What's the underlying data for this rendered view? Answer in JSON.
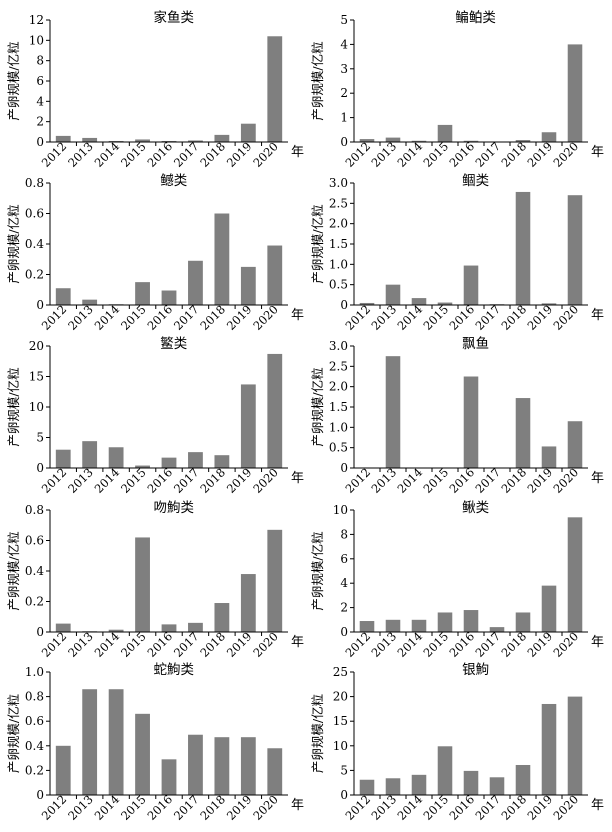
{
  "colors": {
    "bar": "#7f7f7f",
    "axis": "#000000"
  },
  "chart_data": [
    {
      "type": "bar",
      "title": "家鱼类",
      "ylabel": "产卵规模/亿粒",
      "x_unit": "年",
      "categories": [
        "2012",
        "2013",
        "2014",
        "2015",
        "2016",
        "2017",
        "2018",
        "2019",
        "2020"
      ],
      "values": [
        0.6,
        0.4,
        0.1,
        0.25,
        0.1,
        0.15,
        0.7,
        1.8,
        10.4
      ],
      "ylim": [
        0,
        12
      ],
      "yticks": [
        0,
        2,
        4,
        6,
        8,
        10,
        12
      ]
    },
    {
      "type": "bar",
      "title": "鳊鲌类",
      "ylabel": "产卵规模/亿粒",
      "x_unit": "年",
      "categories": [
        "2012",
        "2013",
        "2014",
        "2015",
        "2016",
        "2017",
        "2018",
        "2019",
        "2020"
      ],
      "values": [
        0.12,
        0.18,
        0.05,
        0.7,
        0.05,
        0.01,
        0.08,
        0.4,
        4.0
      ],
      "ylim": [
        0,
        5
      ],
      "yticks": [
        0,
        1,
        2,
        3,
        4,
        5
      ]
    },
    {
      "type": "bar",
      "title": "鳡类",
      "ylabel": "产卵规模/亿粒",
      "x_unit": "年",
      "categories": [
        "2012",
        "2013",
        "2014",
        "2015",
        "2016",
        "2017",
        "2018",
        "2019",
        "2020"
      ],
      "values": [
        0.11,
        0.035,
        0.005,
        0.15,
        0.095,
        0.29,
        0.6,
        0.25,
        0.39
      ],
      "ylim": [
        0,
        0.8
      ],
      "yticks": [
        0,
        0.2,
        0.4,
        0.6,
        0.8
      ]
    },
    {
      "type": "bar",
      "title": "鲴类",
      "ylabel": "产卵规模/亿粒",
      "x_unit": "年",
      "categories": [
        "2012",
        "2013",
        "2014",
        "2015",
        "2016",
        "2017",
        "2018",
        "2019",
        "2020"
      ],
      "values": [
        0.05,
        0.5,
        0.17,
        0.06,
        0.97,
        0.02,
        2.78,
        0.04,
        2.7
      ],
      "ylim": [
        0,
        3.0
      ],
      "yticks": [
        "0",
        "0.5",
        "1.0",
        "1.5",
        "2.0",
        "2.5",
        "3.0"
      ]
    },
    {
      "type": "bar",
      "title": "鳘类",
      "ylabel": "产卵规模/亿粒",
      "x_unit": "年",
      "categories": [
        "2012",
        "2013",
        "2014",
        "2015",
        "2016",
        "2017",
        "2018",
        "2019",
        "2020"
      ],
      "values": [
        3.0,
        4.4,
        3.4,
        0.4,
        1.7,
        2.6,
        2.1,
        13.7,
        18.7
      ],
      "ylim": [
        0,
        20
      ],
      "yticks": [
        0,
        5,
        10,
        15,
        20
      ]
    },
    {
      "type": "bar",
      "title": "飘鱼",
      "ylabel": "产卵规模/亿粒",
      "x_unit": "年",
      "categories": [
        "2012",
        "2013",
        "2014",
        "2015",
        "2016",
        "2017",
        "2018",
        "2019",
        "2020"
      ],
      "values": [
        0,
        2.75,
        0,
        0,
        2.25,
        0,
        1.72,
        0.53,
        1.15
      ],
      "ylim": [
        0,
        3.0
      ],
      "yticks": [
        "0",
        "0.5",
        "1.0",
        "1.5",
        "2.0",
        "2.5",
        "3.0"
      ]
    },
    {
      "type": "bar",
      "title": "吻鮈类",
      "ylabel": "产卵规模/亿粒",
      "x_unit": "年",
      "categories": [
        "2012",
        "2013",
        "2014",
        "2015",
        "2016",
        "2017",
        "2018",
        "2019",
        "2020"
      ],
      "values": [
        0.055,
        0.005,
        0.015,
        0.62,
        0.05,
        0.06,
        0.19,
        0.38,
        0.67
      ],
      "ylim": [
        0,
        0.8
      ],
      "yticks": [
        0,
        0.2,
        0.4,
        0.6,
        0.8
      ]
    },
    {
      "type": "bar",
      "title": "鳅类",
      "ylabel": "产卵规模/亿粒",
      "x_unit": "年",
      "categories": [
        "2012",
        "2013",
        "2014",
        "2015",
        "2016",
        "2017",
        "2018",
        "2019",
        "2020"
      ],
      "values": [
        0.9,
        1.0,
        1.0,
        1.6,
        1.8,
        0.4,
        1.6,
        3.8,
        9.4
      ],
      "ylim": [
        0,
        10
      ],
      "yticks": [
        0,
        2,
        4,
        6,
        8,
        10
      ]
    },
    {
      "type": "bar",
      "title": "蛇鮈类",
      "ylabel": "产卵规模/亿粒",
      "x_unit": "年",
      "categories": [
        "2012",
        "2013",
        "2014",
        "2015",
        "2016",
        "2017",
        "2018",
        "2019",
        "2020"
      ],
      "values": [
        0.4,
        0.86,
        0.86,
        0.66,
        0.29,
        0.49,
        0.47,
        0.47,
        0.38
      ],
      "ylim": [
        0,
        1.0
      ],
      "yticks": [
        "0",
        "0.2",
        "0.4",
        "0.6",
        "0.8",
        "1.0"
      ]
    },
    {
      "type": "bar",
      "title": "银鮈",
      "ylabel": "产卵规模/亿粒",
      "x_unit": "年",
      "categories": [
        "2012",
        "2013",
        "2014",
        "2015",
        "2016",
        "2017",
        "2018",
        "2019",
        "2020"
      ],
      "values": [
        3.1,
        3.4,
        4.1,
        9.9,
        4.9,
        3.6,
        6.1,
        18.5,
        20.0
      ],
      "ylim": [
        0,
        25
      ],
      "yticks": [
        0,
        5,
        10,
        15,
        20,
        25
      ]
    }
  ]
}
